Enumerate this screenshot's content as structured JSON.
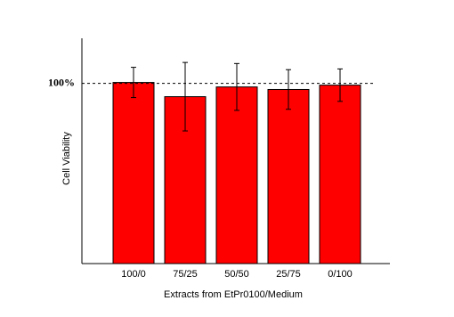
{
  "chart_data": {
    "type": "bar",
    "x_label": "Extracts from EtPr0100/Medium",
    "y_label": "Cell Viability",
    "categories": [
      "100/0",
      "75/25",
      "50/50",
      "25/75",
      "0/100"
    ],
    "values": [
      100.5,
      92.6,
      98,
      96.6,
      99
    ],
    "errors": [
      8.4,
      19,
      13,
      11,
      9
    ],
    "color": "#ff0000",
    "ylim": [
      0,
      125
    ],
    "yticks": [
      {
        "value": 100,
        "label": "100%"
      }
    ],
    "reference_line": 100
  }
}
